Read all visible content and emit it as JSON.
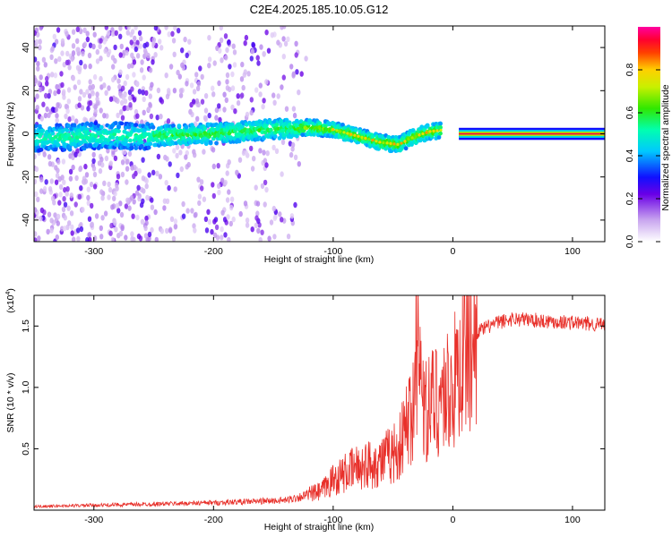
{
  "title": "C2E4.2025.185.10.05.G12",
  "chart_data": [
    {
      "type": "heatmap",
      "xlabel": "Height of straight line (km)",
      "ylabel": "Frequency (Hz)",
      "xlim": [
        -350,
        127
      ],
      "ylim": [
        -50,
        50
      ],
      "xticks": [
        -300,
        -200,
        -100,
        0,
        100
      ],
      "yticks": [
        -40,
        -20,
        0,
        20,
        40
      ],
      "colorbar": {
        "label": "Normalized spectral amplitude",
        "range": [
          0,
          1
        ],
        "ticks": [
          "0.0",
          "0.2",
          "0.4",
          "0.6",
          "0.8"
        ],
        "colormap": "rainbow (white-violet-blue-cyan-green-yellow-red-magenta)"
      },
      "ridge": {
        "x": [
          -350,
          -300,
          -250,
          -200,
          -150,
          -120,
          -100,
          -80,
          -60,
          -45,
          -35,
          -20,
          -5,
          0,
          10,
          127
        ],
        "y": [
          -2,
          -1,
          -1,
          0,
          2,
          3,
          2,
          -1,
          -4,
          -5,
          -2,
          1,
          2,
          2,
          0,
          0
        ]
      }
    },
    {
      "type": "line",
      "xlabel": "Height of straight line (km)",
      "ylabel": "SNR (10 * v/v)",
      "scale_note": "(x10",
      "scale_exp": "4",
      "xlim": [
        -350,
        127
      ],
      "ylim": [
        0,
        17500
      ],
      "xticks": [
        -300,
        -200,
        -100,
        0,
        100
      ],
      "yticks": [
        5000,
        10000,
        15000
      ],
      "ytick_labels": [
        "0.5",
        "1.0",
        "1.5"
      ],
      "color": "#e8302a",
      "envelope": {
        "x": [
          -350,
          -200,
          -140,
          -110,
          -100,
          -80,
          -60,
          -45,
          -35,
          -28,
          -22,
          -15,
          0,
          10,
          20,
          35,
          50,
          127
        ],
        "y": [
          300,
          600,
          800,
          1500,
          2500,
          3500,
          4000,
          5000,
          8000,
          11000,
          8000,
          9000,
          10000,
          13000,
          14500,
          15200,
          15600,
          15100
        ]
      }
    }
  ]
}
